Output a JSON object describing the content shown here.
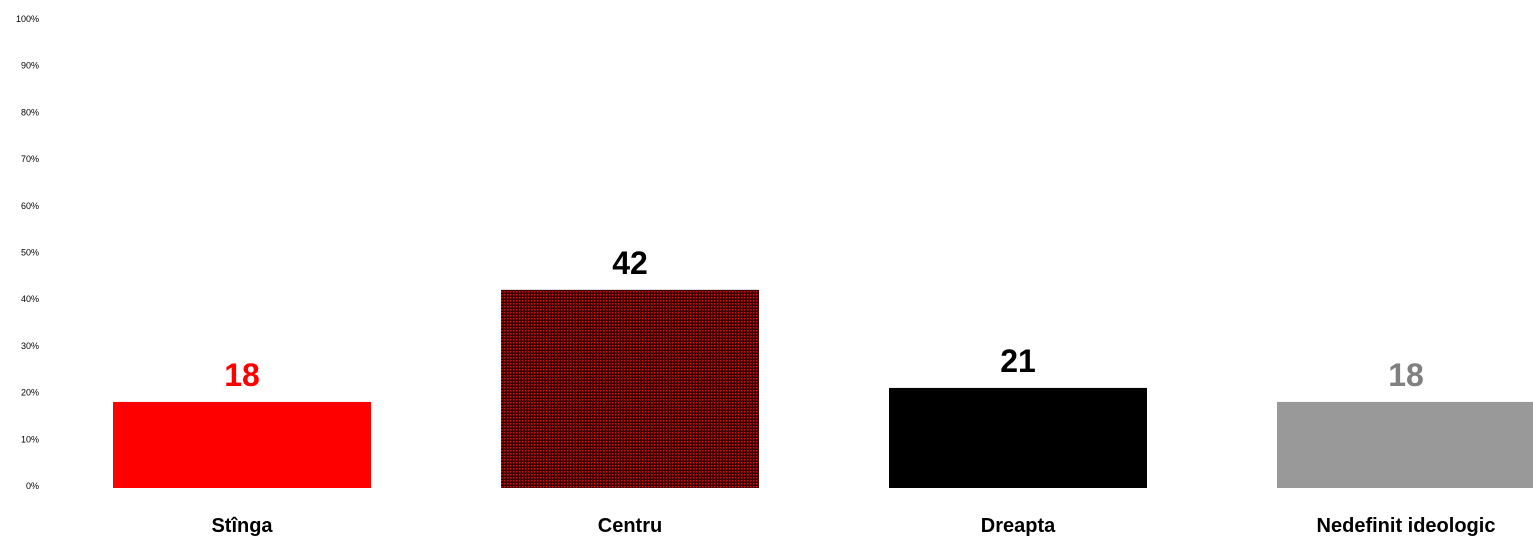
{
  "chart_data": {
    "type": "bar",
    "categories": [
      "Stînga",
      "Centru",
      "Dreapta",
      "Nedefinit ideologic"
    ],
    "values": [
      18,
      42,
      21,
      18
    ],
    "value_labels": [
      "18",
      "42",
      "21",
      "18"
    ],
    "bar_colors": [
      "#ff0000",
      "#5c0a0a",
      "#000000",
      "#999999"
    ],
    "bar_patterns": [
      "solid",
      "dotted-red-on-black",
      "solid",
      "solid"
    ],
    "value_label_colors": [
      "#ff0000",
      "#000000",
      "#000000",
      "#808080"
    ],
    "ylim": [
      0,
      100
    ],
    "yticks": [
      "0%",
      "10%",
      "20%",
      "30%",
      "40%",
      "50%",
      "60%",
      "70%",
      "80%",
      "90%",
      "100%"
    ],
    "grid": false,
    "legend": "none"
  }
}
